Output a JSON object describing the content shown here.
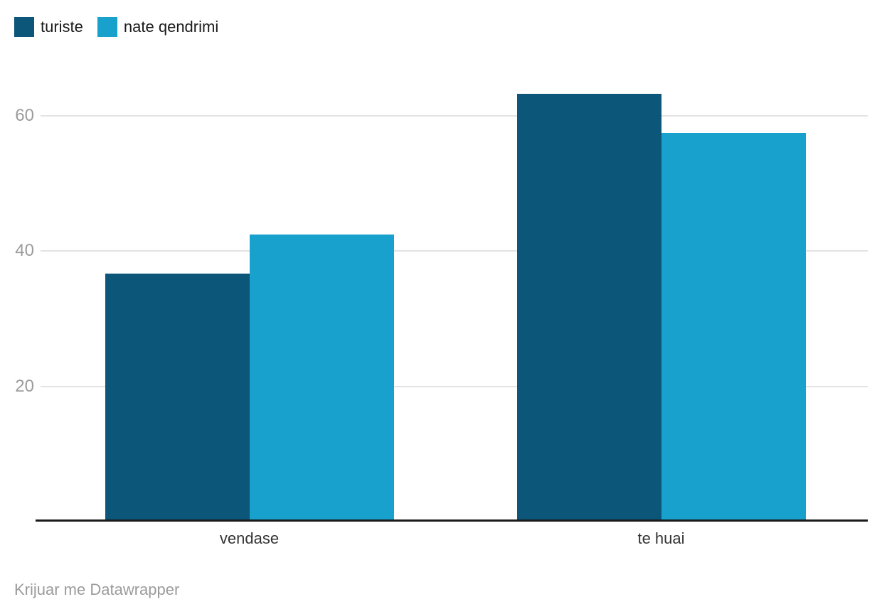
{
  "legend": {
    "items": [
      {
        "label": "turiste",
        "color": "#0c5679"
      },
      {
        "label": "nate qendrimi",
        "color": "#18a1cd"
      }
    ]
  },
  "footer": {
    "credit": "Krijuar me Datawrapper"
  },
  "chart_data": {
    "type": "bar",
    "grouped": true,
    "title": "",
    "xlabel": "",
    "ylabel": "",
    "categories": [
      "vendase",
      "te huai"
    ],
    "series": [
      {
        "name": "turiste",
        "color": "#0c5679",
        "values": [
          36.6,
          63.2
        ]
      },
      {
        "name": "nate qendrimi",
        "color": "#18a1cd",
        "values": [
          42.4,
          57.4
        ]
      }
    ],
    "yticks": [
      20,
      40,
      60
    ],
    "ylim": [
      0,
      68
    ],
    "grid": true,
    "legend_position": "top-left",
    "styles": {
      "grid_color": "#e3e3e3",
      "axis_line_color": "#1a1a1a",
      "y_tick_label_color": "#9c9c9c",
      "category_label_color": "#333333",
      "credit_color": "#9b9b9b",
      "background": "#ffffff"
    }
  }
}
